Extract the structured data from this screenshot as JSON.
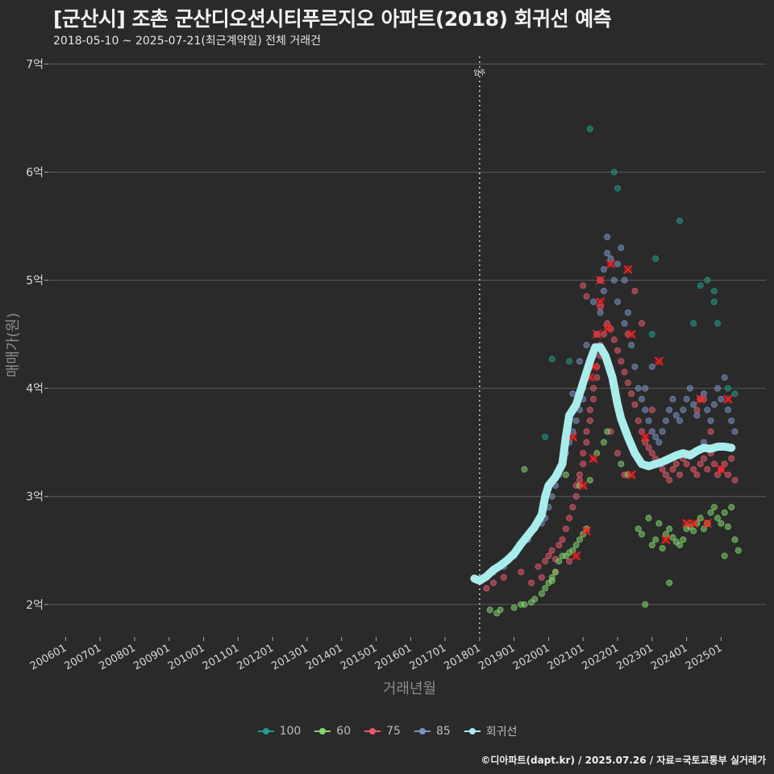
{
  "header": {
    "title": "[군산시] 조촌 군산디오션시티푸르지오 아파트(2018) 회귀선 예측",
    "subtitle": "2018-05-10 ~ 2025-07-21(최근계약일) 전체 거래건"
  },
  "caption": "©디아파트(dapt.kr) / 2025.07.26 / 자료=국토교통부 실거래가",
  "colors": {
    "background": "#2a2a2b",
    "s100": "#1f9e89",
    "s60": "#7fd66b",
    "s75": "#e85a6a",
    "s85": "#7b93c4",
    "trend": "#a8ecec",
    "highlight": "#ff2020"
  },
  "chart_data": {
    "type": "scatter",
    "title": "[군산시] 조촌 군산디오션시티푸르지오 아파트(2018) 회귀선 예측",
    "xlabel": "거래년월",
    "ylabel": "매매가(원)",
    "x_unit": "year",
    "xlim": [
      2005.5,
      2026.3
    ],
    "ylim": [
      1.7,
      7.1
    ],
    "y_ticks": [
      2,
      3,
      4,
      5,
      6,
      7
    ],
    "y_tick_labels": [
      "2억",
      "3억",
      "4억",
      "5억",
      "6억",
      "7억"
    ],
    "x_tick_labels": [
      "200601",
      "200701",
      "200801",
      "200901",
      "201001",
      "201101",
      "201201",
      "201301",
      "201401",
      "201501",
      "201601",
      "201701",
      "201801",
      "201901",
      "202001",
      "202101",
      "202201",
      "202301",
      "202401",
      "202501"
    ],
    "x_tick_values": [
      2006,
      2007,
      2008,
      2009,
      2010,
      2011,
      2012,
      2013,
      2014,
      2015,
      2016,
      2017,
      2018,
      2019,
      2020,
      2021,
      2022,
      2023,
      2024,
      2025
    ],
    "annotation": {
      "label": "입주",
      "x": 2018.0
    },
    "legend": [
      "100",
      "60",
      "75",
      "85",
      "회귀선"
    ],
    "series": [
      {
        "name": "100",
        "points": [
          [
            2019.9,
            3.55
          ],
          [
            2020.1,
            4.27
          ],
          [
            2020.6,
            4.25
          ],
          [
            2021.2,
            6.4
          ],
          [
            2021.9,
            6.0
          ],
          [
            2022.0,
            5.85
          ],
          [
            2023.0,
            4.5
          ],
          [
            2023.1,
            5.2
          ],
          [
            2023.8,
            5.55
          ],
          [
            2024.2,
            4.6
          ],
          [
            2024.4,
            4.95
          ],
          [
            2024.6,
            5.0
          ],
          [
            2024.8,
            4.9
          ],
          [
            2024.8,
            4.8
          ],
          [
            2024.9,
            4.6
          ],
          [
            2025.2,
            4.0
          ],
          [
            2025.4,
            3.95
          ]
        ]
      },
      {
        "name": "60",
        "points": [
          [
            2018.3,
            1.95
          ],
          [
            2018.5,
            1.92
          ],
          [
            2018.6,
            1.95
          ],
          [
            2019.0,
            1.97
          ],
          [
            2019.2,
            2.0
          ],
          [
            2019.3,
            2.0
          ],
          [
            2019.5,
            2.02
          ],
          [
            2019.6,
            2.05
          ],
          [
            2019.8,
            2.1
          ],
          [
            2019.9,
            2.15
          ],
          [
            2020.0,
            2.2
          ],
          [
            2020.1,
            2.22
          ],
          [
            2020.1,
            2.25
          ],
          [
            2020.2,
            2.3
          ],
          [
            2020.3,
            2.4
          ],
          [
            2020.4,
            2.45
          ],
          [
            2020.5,
            2.45
          ],
          [
            2020.6,
            2.48
          ],
          [
            2020.7,
            2.5
          ],
          [
            2020.8,
            2.55
          ],
          [
            2020.9,
            2.6
          ],
          [
            2021.0,
            2.65
          ],
          [
            2021.1,
            2.7
          ],
          [
            2020.5,
            3.2
          ],
          [
            2020.9,
            3.1
          ],
          [
            2021.2,
            3.15
          ],
          [
            2021.4,
            3.4
          ],
          [
            2021.6,
            3.5
          ],
          [
            2021.7,
            3.6
          ],
          [
            2022.1,
            3.3
          ],
          [
            2022.3,
            3.2
          ],
          [
            2022.6,
            2.7
          ],
          [
            2022.7,
            2.65
          ],
          [
            2022.9,
            2.8
          ],
          [
            2023.0,
            2.55
          ],
          [
            2023.1,
            2.6
          ],
          [
            2023.2,
            2.75
          ],
          [
            2023.3,
            2.52
          ],
          [
            2023.4,
            2.65
          ],
          [
            2023.5,
            2.7
          ],
          [
            2023.6,
            2.62
          ],
          [
            2023.7,
            2.58
          ],
          [
            2023.8,
            2.55
          ],
          [
            2023.9,
            2.6
          ],
          [
            2024.0,
            2.7
          ],
          [
            2024.1,
            2.72
          ],
          [
            2024.2,
            2.68
          ],
          [
            2024.3,
            2.75
          ],
          [
            2024.4,
            2.8
          ],
          [
            2024.5,
            2.7
          ],
          [
            2024.6,
            2.75
          ],
          [
            2024.7,
            2.85
          ],
          [
            2024.8,
            2.9
          ],
          [
            2024.9,
            2.8
          ],
          [
            2025.0,
            2.75
          ],
          [
            2025.1,
            2.85
          ],
          [
            2025.2,
            2.72
          ],
          [
            2025.3,
            2.9
          ],
          [
            2025.4,
            2.6
          ],
          [
            2025.5,
            2.5
          ],
          [
            2025.1,
            2.45
          ],
          [
            2022.8,
            2.0
          ],
          [
            2023.5,
            2.2
          ],
          [
            2019.3,
            3.25
          ]
        ]
      },
      {
        "name": "75",
        "points": [
          [
            2018.2,
            2.15
          ],
          [
            2018.4,
            2.2
          ],
          [
            2018.7,
            2.25
          ],
          [
            2019.2,
            2.3
          ],
          [
            2019.5,
            2.2
          ],
          [
            2019.7,
            2.35
          ],
          [
            2019.9,
            2.4
          ],
          [
            2020.0,
            2.45
          ],
          [
            2020.1,
            2.5
          ],
          [
            2020.2,
            2.42
          ],
          [
            2020.3,
            2.55
          ],
          [
            2020.4,
            2.6
          ],
          [
            2020.5,
            2.7
          ],
          [
            2020.6,
            2.8
          ],
          [
            2020.7,
            2.9
          ],
          [
            2020.8,
            3.0
          ],
          [
            2020.8,
            3.1
          ],
          [
            2020.9,
            3.15
          ],
          [
            2020.9,
            3.2
          ],
          [
            2021.0,
            3.3
          ],
          [
            2021.0,
            3.4
          ],
          [
            2021.1,
            3.5
          ],
          [
            2021.1,
            3.6
          ],
          [
            2021.2,
            3.7
          ],
          [
            2021.2,
            3.8
          ],
          [
            2021.3,
            3.9
          ],
          [
            2021.3,
            4.0
          ],
          [
            2021.4,
            4.1
          ],
          [
            2021.4,
            4.2
          ],
          [
            2021.5,
            4.3
          ],
          [
            2021.5,
            4.4
          ],
          [
            2021.6,
            4.5
          ],
          [
            2021.7,
            4.6
          ],
          [
            2021.0,
            4.95
          ],
          [
            2021.1,
            4.85
          ],
          [
            2021.5,
            4.75
          ],
          [
            2021.8,
            4.55
          ],
          [
            2021.9,
            4.45
          ],
          [
            2022.0,
            4.35
          ],
          [
            2022.1,
            4.25
          ],
          [
            2022.2,
            4.15
          ],
          [
            2022.3,
            4.05
          ],
          [
            2022.4,
            3.95
          ],
          [
            2022.5,
            3.85
          ],
          [
            2022.6,
            3.7
          ],
          [
            2022.7,
            3.6
          ],
          [
            2022.8,
            3.5
          ],
          [
            2022.9,
            3.45
          ],
          [
            2023.0,
            3.4
          ],
          [
            2023.1,
            3.35
          ],
          [
            2023.2,
            3.3
          ],
          [
            2023.3,
            3.25
          ],
          [
            2023.4,
            3.2
          ],
          [
            2023.5,
            3.15
          ],
          [
            2023.6,
            3.25
          ],
          [
            2023.7,
            3.3
          ],
          [
            2023.8,
            3.2
          ],
          [
            2023.9,
            3.35
          ],
          [
            2024.0,
            3.3
          ],
          [
            2024.1,
            3.4
          ],
          [
            2024.2,
            3.25
          ],
          [
            2024.3,
            3.2
          ],
          [
            2024.4,
            3.3
          ],
          [
            2024.5,
            3.35
          ],
          [
            2024.6,
            3.25
          ],
          [
            2024.7,
            3.4
          ],
          [
            2024.8,
            3.3
          ],
          [
            2024.9,
            3.2
          ],
          [
            2025.0,
            3.25
          ],
          [
            2025.1,
            3.3
          ],
          [
            2025.2,
            3.2
          ],
          [
            2025.3,
            3.35
          ],
          [
            2025.4,
            3.15
          ],
          [
            2022.3,
            4.5
          ],
          [
            2022.5,
            4.9
          ],
          [
            2022.7,
            4.6
          ],
          [
            2024.3,
            3.8
          ],
          [
            2024.5,
            3.9
          ],
          [
            2024.7,
            3.6
          ],
          [
            2023.0,
            3.8
          ],
          [
            2022.0,
            3.4
          ],
          [
            2022.2,
            3.2
          ],
          [
            2021.8,
            3.6
          ],
          [
            2020.6,
            2.4
          ],
          [
            2020.2,
            2.3
          ],
          [
            2019.8,
            2.25
          ]
        ]
      },
      {
        "name": "85",
        "points": [
          [
            2018.4,
            2.3
          ],
          [
            2018.7,
            2.35
          ],
          [
            2019.0,
            2.45
          ],
          [
            2019.2,
            2.55
          ],
          [
            2019.4,
            2.6
          ],
          [
            2019.6,
            2.7
          ],
          [
            2019.8,
            2.75
          ],
          [
            2019.9,
            2.8
          ],
          [
            2020.0,
            2.9
          ],
          [
            2020.1,
            3.0
          ],
          [
            2020.2,
            3.1
          ],
          [
            2020.3,
            3.2
          ],
          [
            2020.4,
            3.3
          ],
          [
            2020.5,
            3.4
          ],
          [
            2020.6,
            3.5
          ],
          [
            2020.7,
            3.6
          ],
          [
            2020.8,
            3.7
          ],
          [
            2020.9,
            3.8
          ],
          [
            2021.0,
            3.9
          ],
          [
            2021.0,
            4.0
          ],
          [
            2021.1,
            4.1
          ],
          [
            2021.2,
            4.2
          ],
          [
            2021.3,
            4.3
          ],
          [
            2021.4,
            4.5
          ],
          [
            2021.5,
            4.7
          ],
          [
            2021.6,
            4.9
          ],
          [
            2021.6,
            5.1
          ],
          [
            2021.7,
            5.25
          ],
          [
            2021.7,
            5.4
          ],
          [
            2021.8,
            5.2
          ],
          [
            2021.9,
            5.0
          ],
          [
            2022.0,
            5.15
          ],
          [
            2022.1,
            5.3
          ],
          [
            2022.2,
            5.0
          ],
          [
            2022.3,
            4.7
          ],
          [
            2022.4,
            4.4
          ],
          [
            2022.5,
            4.2
          ],
          [
            2022.6,
            4.0
          ],
          [
            2022.7,
            3.9
          ],
          [
            2022.8,
            3.8
          ],
          [
            2022.9,
            3.7
          ],
          [
            2023.0,
            3.6
          ],
          [
            2023.1,
            3.55
          ],
          [
            2023.2,
            3.5
          ],
          [
            2023.3,
            3.6
          ],
          [
            2023.4,
            3.7
          ],
          [
            2023.5,
            3.8
          ],
          [
            2023.6,
            3.9
          ],
          [
            2023.7,
            3.75
          ],
          [
            2023.8,
            3.7
          ],
          [
            2023.9,
            3.8
          ],
          [
            2024.0,
            3.9
          ],
          [
            2024.1,
            4.0
          ],
          [
            2024.2,
            3.85
          ],
          [
            2024.3,
            3.75
          ],
          [
            2024.4,
            3.9
          ],
          [
            2024.5,
            3.95
          ],
          [
            2024.6,
            3.8
          ],
          [
            2024.7,
            3.7
          ],
          [
            2024.8,
            3.85
          ],
          [
            2024.9,
            4.0
          ],
          [
            2025.0,
            3.9
          ],
          [
            2025.1,
            4.1
          ],
          [
            2025.2,
            3.8
          ],
          [
            2025.3,
            3.7
          ],
          [
            2025.4,
            3.6
          ],
          [
            2021.5,
            5.0
          ],
          [
            2021.3,
            4.8
          ],
          [
            2021.1,
            4.4
          ],
          [
            2020.9,
            4.25
          ],
          [
            2020.7,
            3.95
          ],
          [
            2022.0,
            4.8
          ],
          [
            2022.2,
            4.6
          ],
          [
            2022.8,
            4.0
          ],
          [
            2023.0,
            4.2
          ],
          [
            2024.5,
            3.5
          ],
          [
            2024.7,
            3.45
          ]
        ]
      }
    ],
    "highlights": [
      [
        2020.7,
        3.55
      ],
      [
        2020.8,
        2.45
      ],
      [
        2021.1,
        2.68
      ],
      [
        2021.0,
        3.1
      ],
      [
        2021.2,
        4.1
      ],
      [
        2021.3,
        4.2
      ],
      [
        2021.4,
        4.5
      ],
      [
        2021.5,
        4.8
      ],
      [
        2021.5,
        5.0
      ],
      [
        2021.7,
        4.55
      ],
      [
        2021.8,
        5.15
      ],
      [
        2022.3,
        5.1
      ],
      [
        2022.4,
        4.5
      ],
      [
        2022.4,
        3.2
      ],
      [
        2022.8,
        3.55
      ],
      [
        2023.2,
        4.25
      ],
      [
        2023.4,
        2.6
      ],
      [
        2024.0,
        2.75
      ],
      [
        2024.2,
        2.75
      ],
      [
        2024.4,
        3.9
      ],
      [
        2024.6,
        2.75
      ],
      [
        2025.0,
        3.25
      ],
      [
        2025.2,
        3.9
      ],
      [
        2021.3,
        3.35
      ]
    ],
    "trend": [
      [
        2017.85,
        2.24
      ],
      [
        2018.0,
        2.22
      ],
      [
        2018.2,
        2.26
      ],
      [
        2018.4,
        2.32
      ],
      [
        2018.6,
        2.36
      ],
      [
        2018.8,
        2.41
      ],
      [
        2019.0,
        2.47
      ],
      [
        2019.2,
        2.56
      ],
      [
        2019.4,
        2.64
      ],
      [
        2019.6,
        2.72
      ],
      [
        2019.8,
        2.83
      ],
      [
        2019.9,
        3.0
      ],
      [
        2020.0,
        3.1
      ],
      [
        2020.2,
        3.18
      ],
      [
        2020.4,
        3.3
      ],
      [
        2020.5,
        3.55
      ],
      [
        2020.6,
        3.75
      ],
      [
        2020.8,
        3.85
      ],
      [
        2021.0,
        4.05
      ],
      [
        2021.2,
        4.25
      ],
      [
        2021.35,
        4.38
      ],
      [
        2021.5,
        4.38
      ],
      [
        2021.65,
        4.3
      ],
      [
        2021.85,
        4.1
      ],
      [
        2022.0,
        3.85
      ],
      [
        2022.1,
        3.72
      ],
      [
        2022.3,
        3.55
      ],
      [
        2022.5,
        3.4
      ],
      [
        2022.7,
        3.3
      ],
      [
        2022.9,
        3.28
      ],
      [
        2023.1,
        3.3
      ],
      [
        2023.3,
        3.32
      ],
      [
        2023.5,
        3.35
      ],
      [
        2023.7,
        3.38
      ],
      [
        2023.9,
        3.4
      ],
      [
        2024.1,
        3.38
      ],
      [
        2024.3,
        3.42
      ],
      [
        2024.5,
        3.45
      ],
      [
        2024.7,
        3.44
      ],
      [
        2024.9,
        3.46
      ],
      [
        2025.1,
        3.46
      ],
      [
        2025.3,
        3.45
      ]
    ]
  }
}
